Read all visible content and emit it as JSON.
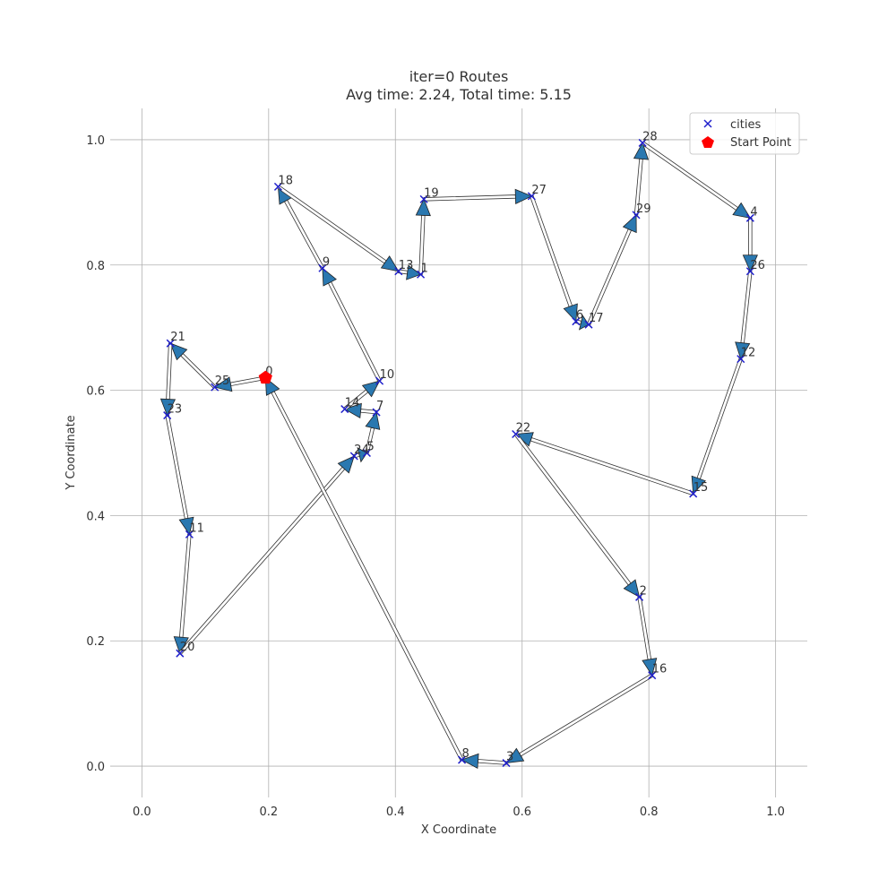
{
  "chart_data": {
    "type": "scatter",
    "title_line1": "iter=0 Routes",
    "title_line2": "Avg time: 2.24, Total time: 5.15",
    "xlabel": "X Coordinate",
    "ylabel": "Y Coordinate",
    "xlim": [
      -0.05,
      1.05
    ],
    "ylim": [
      -0.05,
      1.05
    ],
    "xticks": [
      "0.0",
      "0.2",
      "0.4",
      "0.6",
      "0.8",
      "1.0"
    ],
    "xtick_values": [
      0.0,
      0.2,
      0.4,
      0.6,
      0.8,
      1.0
    ],
    "yticks": [
      "0.0",
      "0.2",
      "0.4",
      "0.6",
      "0.8",
      "1.0"
    ],
    "ytick_values": [
      0.0,
      0.2,
      0.4,
      0.6,
      0.8,
      1.0
    ],
    "grid": true,
    "legend": {
      "position": "top-right",
      "entries": [
        {
          "label": "cities",
          "marker": "x",
          "color": "#1f1fcc"
        },
        {
          "label": "Start Point",
          "marker": "pentagon",
          "color": "#ff0000"
        }
      ]
    },
    "cities": [
      {
        "id": "0",
        "x": 0.195,
        "y": 0.62
      },
      {
        "id": "1",
        "x": 0.44,
        "y": 0.785
      },
      {
        "id": "2",
        "x": 0.785,
        "y": 0.27
      },
      {
        "id": "3",
        "x": 0.575,
        "y": 0.005
      },
      {
        "id": "4",
        "x": 0.96,
        "y": 0.875
      },
      {
        "id": "5",
        "x": 0.355,
        "y": 0.5
      },
      {
        "id": "6",
        "x": 0.685,
        "y": 0.71
      },
      {
        "id": "7",
        "x": 0.37,
        "y": 0.565
      },
      {
        "id": "8",
        "x": 0.505,
        "y": 0.01
      },
      {
        "id": "9",
        "x": 0.285,
        "y": 0.795
      },
      {
        "id": "10",
        "x": 0.375,
        "y": 0.615
      },
      {
        "id": "11",
        "x": 0.075,
        "y": 0.37
      },
      {
        "id": "12",
        "x": 0.945,
        "y": 0.65
      },
      {
        "id": "13",
        "x": 0.405,
        "y": 0.79
      },
      {
        "id": "14",
        "x": 0.32,
        "y": 0.57
      },
      {
        "id": "15",
        "x": 0.87,
        "y": 0.435
      },
      {
        "id": "16",
        "x": 0.805,
        "y": 0.145
      },
      {
        "id": "17",
        "x": 0.705,
        "y": 0.705
      },
      {
        "id": "18",
        "x": 0.215,
        "y": 0.925
      },
      {
        "id": "19",
        "x": 0.445,
        "y": 0.905
      },
      {
        "id": "20",
        "x": 0.06,
        "y": 0.18
      },
      {
        "id": "21",
        "x": 0.045,
        "y": 0.675
      },
      {
        "id": "22",
        "x": 0.59,
        "y": 0.53
      },
      {
        "id": "23",
        "x": 0.04,
        "y": 0.56
      },
      {
        "id": "24",
        "x": 0.335,
        "y": 0.495
      },
      {
        "id": "25",
        "x": 0.115,
        "y": 0.605
      },
      {
        "id": "26",
        "x": 0.96,
        "y": 0.79
      },
      {
        "id": "27",
        "x": 0.615,
        "y": 0.91
      },
      {
        "id": "28",
        "x": 0.79,
        "y": 0.995
      },
      {
        "id": "29",
        "x": 0.78,
        "y": 0.88
      }
    ],
    "start_point": {
      "id": "0",
      "x": 0.195,
      "y": 0.62
    },
    "route": [
      "0",
      "25",
      "21",
      "23",
      "11",
      "20",
      "24",
      "5",
      "7",
      "14",
      "10",
      "9",
      "18",
      "13",
      "1",
      "19",
      "27",
      "6",
      "17",
      "29",
      "28",
      "4",
      "26",
      "12",
      "15",
      "22",
      "2",
      "16",
      "3",
      "8",
      "0"
    ]
  }
}
